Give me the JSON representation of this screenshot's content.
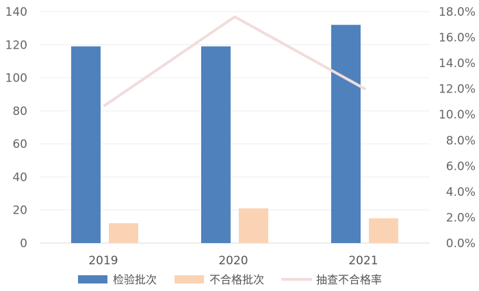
{
  "chart_data": {
    "type": "bar",
    "categories": [
      "2019",
      "2020",
      "2021"
    ],
    "series": [
      {
        "name": "检验批次",
        "type": "bar",
        "axis": "left",
        "color": "#4F81BD",
        "values": [
          119,
          119,
          132
        ]
      },
      {
        "name": "不合格批次",
        "type": "bar",
        "axis": "left",
        "color": "#FAD3B4",
        "values": [
          12,
          21,
          15
        ]
      },
      {
        "name": "抽查不合格率",
        "type": "line",
        "axis": "right",
        "color": "#F2DCDB",
        "values": [
          10.7,
          17.6,
          12.0
        ]
      }
    ],
    "y_left": {
      "min": 0,
      "max": 140,
      "ticks": [
        "0",
        "20",
        "40",
        "60",
        "80",
        "100",
        "120",
        "140"
      ]
    },
    "y_right": {
      "min": 0,
      "max": 18,
      "ticks": [
        "0.0%",
        "2.0%",
        "4.0%",
        "6.0%",
        "8.0%",
        "10.0%",
        "12.0%",
        "14.0%",
        "16.0%",
        "18.0%"
      ]
    },
    "grid": true,
    "legend_position": "bottom"
  }
}
